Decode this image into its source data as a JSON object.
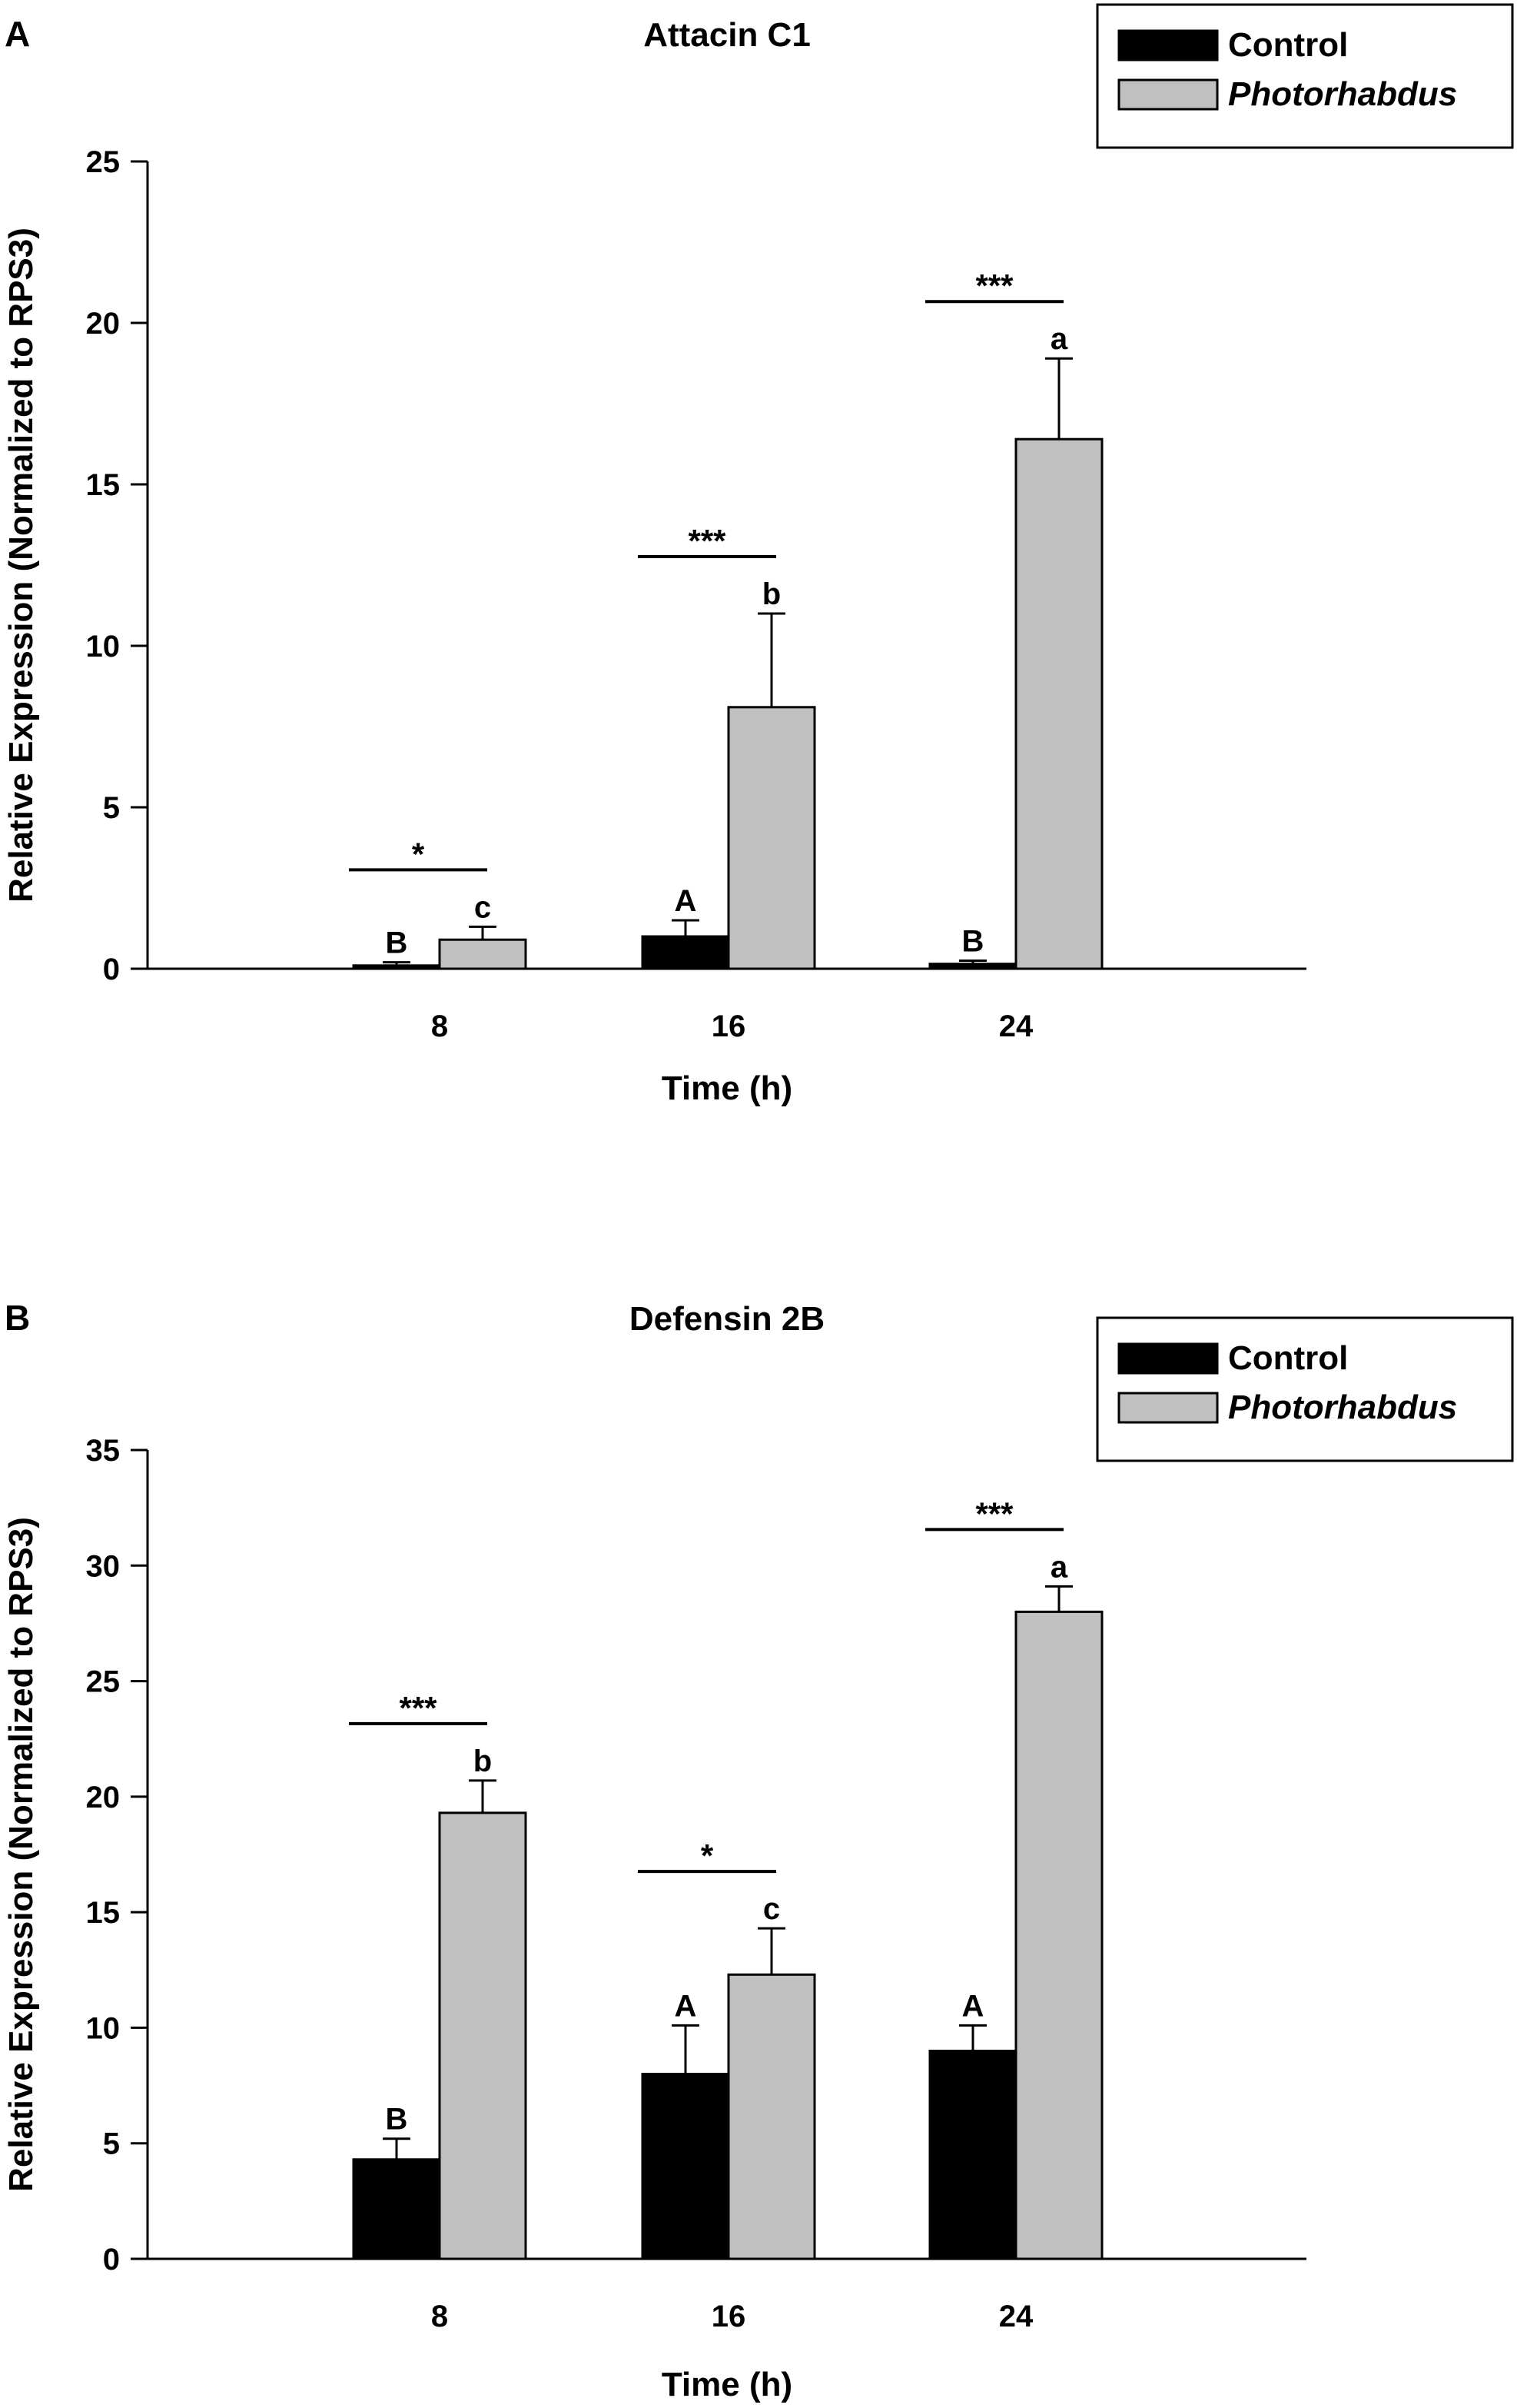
{
  "chart_data": [
    {
      "panel": "A",
      "type": "bar",
      "title": "Attacin C1",
      "xlabel": "Time (h)",
      "ylabel": "Relative Expression (Normalized to RPS3)",
      "ylim": [
        0,
        25
      ],
      "yticks": [
        0,
        5,
        10,
        15,
        20,
        25
      ],
      "categories": [
        "8",
        "16",
        "24"
      ],
      "legend": {
        "position": "top-right",
        "entries": [
          "Control",
          "Photorhabdus"
        ]
      },
      "series": [
        {
          "name": "Control",
          "color": "#000000",
          "values": [
            0.1,
            1.0,
            0.15
          ],
          "errors": [
            0.1,
            0.5,
            0.1
          ],
          "letters": [
            "B",
            "A",
            "B"
          ]
        },
        {
          "name": "Photorhabdus",
          "color": "#c0c0c0",
          "values": [
            0.9,
            8.1,
            16.4
          ],
          "errors": [
            0.4,
            2.9,
            2.5
          ],
          "letters": [
            "c",
            "b",
            "a"
          ]
        }
      ],
      "significance": [
        "*",
        "***",
        "***"
      ]
    },
    {
      "panel": "B",
      "type": "bar",
      "title": "Defensin 2B",
      "xlabel": "Time (h)",
      "ylabel": "Relative Expression (Normalized to RPS3)",
      "ylim": [
        0,
        35
      ],
      "yticks": [
        0,
        5,
        10,
        15,
        20,
        25,
        30,
        35
      ],
      "categories": [
        "8",
        "16",
        "24"
      ],
      "legend": {
        "position": "top-right",
        "entries": [
          "Control",
          "Photorhabdus"
        ]
      },
      "series": [
        {
          "name": "Control",
          "color": "#000000",
          "values": [
            4.3,
            8.0,
            9.0
          ],
          "errors": [
            0.9,
            2.1,
            1.1
          ],
          "letters": [
            "B",
            "A",
            "A"
          ]
        },
        {
          "name": "Photorhabdus",
          "color": "#c0c0c0",
          "values": [
            19.3,
            12.3,
            28.0
          ],
          "errors": [
            1.4,
            2.0,
            1.1
          ],
          "letters": [
            "b",
            "c",
            "a"
          ]
        }
      ],
      "significance": [
        "***",
        "*",
        "***"
      ]
    }
  ]
}
